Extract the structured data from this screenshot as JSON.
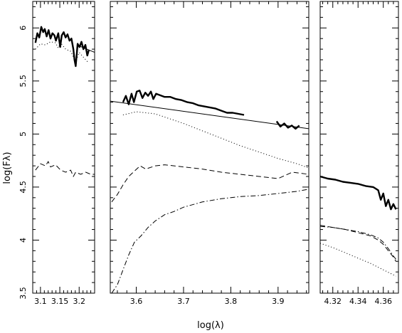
{
  "chart_data": {
    "type": "line",
    "title": "",
    "xlabel": "log(λ)",
    "ylabel": "log(Fλ)",
    "ylim": [
      3.5,
      6.25
    ],
    "y_ticks": [
      "3.5",
      "4",
      "4.5",
      "5",
      "5.5",
      "6"
    ],
    "y_tick_values": [
      3.5,
      4,
      4.5,
      5,
      5.5,
      6
    ],
    "panels": [
      {
        "id": "panel-left",
        "xlim": [
          3.08,
          3.24
        ],
        "x_ticks": [
          "3.1",
          "3.15",
          "3.2"
        ],
        "x_tick_values": [
          3.1,
          3.15,
          3.2
        ],
        "series": [
          {
            "style": "thick",
            "x": [
              3.087,
              3.092,
              3.097,
              3.102,
              3.107,
              3.111,
              3.116,
              3.121,
              3.126,
              3.131,
              3.136,
              3.14,
              3.146,
              3.151,
              3.155,
              3.16,
              3.165,
              3.17,
              3.175,
              3.18,
              3.185,
              3.188,
              3.191,
              3.196,
              3.201,
              3.206,
              3.211,
              3.216,
              3.221,
              3.225
            ],
            "y": [
              5.86,
              5.95,
              5.91,
              6.01,
              5.96,
              5.99,
              5.92,
              5.98,
              5.9,
              5.95,
              5.93,
              5.88,
              5.95,
              5.82,
              5.93,
              5.96,
              5.91,
              5.94,
              5.88,
              5.9,
              5.8,
              5.7,
              5.64,
              5.85,
              5.82,
              5.87,
              5.8,
              5.84,
              5.74,
              5.79
            ]
          },
          {
            "style": "thin",
            "x": [
              3.2,
              3.24
            ],
            "y": [
              5.83,
              5.77
            ]
          },
          {
            "style": "dotted",
            "x": [
              3.087,
              3.1,
              3.113,
              3.126,
              3.139,
              3.146,
              3.152,
              3.165,
              3.178,
              3.186,
              3.191,
              3.2,
              3.212,
              3.222
            ],
            "y": [
              5.8,
              5.85,
              5.84,
              5.87,
              5.86,
              5.81,
              5.86,
              5.8,
              5.78,
              5.72,
              5.68,
              5.77,
              5.72,
              5.68
            ]
          },
          {
            "style": "dashed",
            "x": [
              3.087,
              3.1,
              3.113,
              3.12,
              3.126,
              3.139,
              3.152,
              3.165,
              3.178,
              3.185,
              3.191,
              3.204,
              3.217,
              3.23,
              3.24
            ],
            "y": [
              4.66,
              4.72,
              4.7,
              4.74,
              4.69,
              4.71,
              4.66,
              4.64,
              4.66,
              4.6,
              4.64,
              4.62,
              4.64,
              4.62,
              4.62
            ]
          }
        ]
      },
      {
        "id": "panel-middle",
        "xlim": [
          3.545,
          3.965
        ],
        "x_ticks": [
          "3.6",
          "3.7",
          "3.8",
          "3.9"
        ],
        "x_tick_values": [
          3.6,
          3.7,
          3.8,
          3.9
        ],
        "series": [
          {
            "style": "thick",
            "x": [
              3.572,
              3.578,
              3.584,
              3.59,
              3.595,
              3.601,
              3.607,
              3.613,
              3.619,
              3.625,
              3.631,
              3.636,
              3.642,
              3.648,
              3.66,
              3.672,
              3.684,
              3.696,
              3.708,
              3.72,
              3.732,
              3.744,
              3.756,
              3.768,
              3.78,
              3.792,
              3.804,
              3.816,
              3.828
            ],
            "y": [
              5.3,
              5.36,
              5.28,
              5.38,
              5.3,
              5.4,
              5.41,
              5.34,
              5.39,
              5.36,
              5.4,
              5.33,
              5.38,
              5.37,
              5.35,
              5.35,
              5.33,
              5.32,
              5.3,
              5.29,
              5.27,
              5.26,
              5.25,
              5.24,
              5.22,
              5.2,
              5.2,
              5.19,
              5.18
            ]
          },
          {
            "style": "thick",
            "x": [
              3.897,
              3.905,
              3.913,
              3.921,
              3.929,
              3.937,
              3.945
            ],
            "y": [
              5.12,
              5.07,
              5.1,
              5.06,
              5.08,
              5.05,
              5.08
            ]
          },
          {
            "style": "thin",
            "x": [
              3.545,
              3.965
            ],
            "y": [
              5.31,
              5.05
            ]
          },
          {
            "style": "dotted",
            "x": [
              3.572,
              3.6,
              3.62,
              3.64,
              3.66,
              3.7,
              3.74,
              3.78,
              3.82,
              3.86,
              3.9,
              3.94,
              3.965
            ],
            "y": [
              5.18,
              5.21,
              5.2,
              5.19,
              5.16,
              5.1,
              5.03,
              4.96,
              4.89,
              4.83,
              4.77,
              4.72,
              4.68
            ]
          },
          {
            "style": "dashed",
            "x": [
              3.548,
              3.56,
              3.572,
              3.584,
              3.596,
              3.608,
              3.62,
              3.64,
              3.66,
              3.7,
              3.74,
              3.78,
              3.82,
              3.86,
              3.9,
              3.93,
              3.965
            ],
            "y": [
              4.36,
              4.43,
              4.52,
              4.6,
              4.65,
              4.7,
              4.67,
              4.7,
              4.71,
              4.69,
              4.67,
              4.64,
              4.62,
              4.6,
              4.58,
              4.64,
              4.62
            ]
          },
          {
            "style": "dashdot",
            "x": [
              3.548,
              3.56,
              3.572,
              3.584,
              3.596,
              3.61,
              3.625,
              3.64,
              3.66,
              3.68,
              3.7,
              3.74,
              3.78,
              3.82,
              3.86,
              3.9,
              3.94,
              3.965
            ],
            "y": [
              3.5,
              3.58,
              3.72,
              3.86,
              3.98,
              4.04,
              4.12,
              4.18,
              4.24,
              4.27,
              4.31,
              4.36,
              4.39,
              4.41,
              4.42,
              4.44,
              4.46,
              4.48
            ]
          }
        ]
      },
      {
        "id": "panel-right",
        "xlim": [
          4.31,
          4.372
        ],
        "x_ticks": [
          "4.32",
          "4.34",
          "4.36"
        ],
        "x_tick_values": [
          4.32,
          4.34,
          4.36
        ],
        "series": [
          {
            "style": "thick",
            "x": [
              4.31,
              4.316,
              4.322,
              4.328,
              4.334,
              4.34,
              4.346,
              4.352,
              4.356,
              4.358,
              4.36,
              4.362,
              4.364,
              4.366,
              4.368,
              4.37
            ],
            "y": [
              4.6,
              4.58,
              4.57,
              4.55,
              4.54,
              4.53,
              4.51,
              4.5,
              4.47,
              4.38,
              4.44,
              4.32,
              4.38,
              4.29,
              4.34,
              4.29
            ]
          },
          {
            "style": "dashdot",
            "x": [
              4.31,
              4.32,
              4.33,
              4.34,
              4.35,
              4.356,
              4.36,
              4.364,
              4.368,
              4.37
            ],
            "y": [
              4.13,
              4.12,
              4.1,
              4.08,
              4.05,
              4.02,
              3.98,
              3.92,
              3.85,
              3.82
            ]
          },
          {
            "style": "dashed",
            "x": [
              4.31,
              4.32,
              4.33,
              4.34,
              4.35,
              4.356,
              4.36,
              4.364,
              4.368,
              4.37
            ],
            "y": [
              4.14,
              4.12,
              4.1,
              4.07,
              4.04,
              4.0,
              3.96,
              3.9,
              3.84,
              3.8
            ]
          },
          {
            "style": "dotted",
            "x": [
              4.31,
              4.32,
              4.33,
              4.34,
              4.35,
              4.36,
              4.37
            ],
            "y": [
              3.97,
              3.93,
              3.88,
              3.83,
              3.78,
              3.72,
              3.66
            ]
          }
        ]
      }
    ]
  }
}
